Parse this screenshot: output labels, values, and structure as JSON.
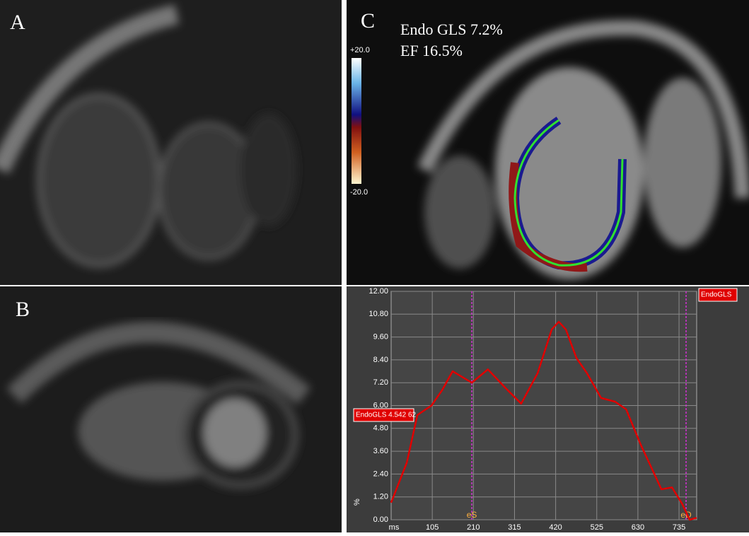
{
  "panels": {
    "a": "A",
    "b": "B",
    "c": "C"
  },
  "overlay": {
    "gls": "Endo GLS 7.2%",
    "ef": "EF 16.5%",
    "scale_top": "+20.0",
    "scale_bottom": "-20.0"
  },
  "chart_data": {
    "type": "line",
    "x_label": "ms",
    "y_label": "%",
    "xlim": [
      0,
      780
    ],
    "xticks": [
      105,
      210,
      315,
      420,
      525,
      630,
      735
    ],
    "ylim": [
      0,
      12
    ],
    "yticks": [
      {
        "value": 0,
        "label": "0.00"
      },
      {
        "value": 1.2,
        "label": "1.20"
      },
      {
        "value": 2.4,
        "label": "2.40"
      },
      {
        "value": 3.6,
        "label": "3.60"
      },
      {
        "value": 4.8,
        "label": "4.80"
      },
      {
        "value": 6,
        "label": "6.00"
      },
      {
        "value": 7.2,
        "label": "7.20"
      },
      {
        "value": 8.4,
        "label": "8.40"
      },
      {
        "value": 9.6,
        "label": "9.60"
      },
      {
        "value": 10.8,
        "label": "10.80"
      },
      {
        "value": 12,
        "label": "12.00"
      }
    ],
    "grid": true,
    "series": [
      {
        "name": "EndoGLS",
        "color": "#e00000",
        "x": [
          0,
          40,
          67,
          103,
          130,
          157,
          206,
          247,
          293,
          332,
          374,
          410,
          428,
          446,
          473,
          500,
          536,
          572,
          600,
          636,
          663,
          690,
          717,
          744,
          762,
          780
        ],
        "values": [
          0.9,
          3.0,
          5.5,
          6.0,
          6.8,
          7.8,
          7.2,
          7.9,
          6.9,
          6.1,
          7.7,
          10.0,
          10.4,
          10.0,
          8.5,
          7.7,
          6.4,
          6.2,
          5.8,
          4.0,
          2.8,
          1.6,
          1.7,
          0.8,
          0.0,
          0.1
        ]
      }
    ],
    "markers": [
      {
        "label": "eS",
        "x": 206
      },
      {
        "label": "eD",
        "x": 753
      }
    ],
    "cursor_label": "EndoGLS 4.542  62"
  }
}
